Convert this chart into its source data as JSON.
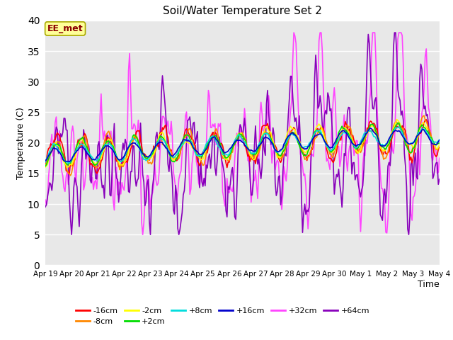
{
  "title": "Soil/Water Temperature Set 2",
  "xlabel": "Time",
  "ylabel": "Temperature (C)",
  "annotation": "EE_met",
  "ylim": [
    0,
    40
  ],
  "yticks": [
    0,
    5,
    10,
    15,
    20,
    25,
    30,
    35,
    40
  ],
  "x_labels": [
    "Apr 19",
    "Apr 20",
    "Apr 21",
    "Apr 22",
    "Apr 23",
    "Apr 24",
    "Apr 25",
    "Apr 26",
    "Apr 27",
    "Apr 28",
    "Apr 29",
    "Apr 30",
    "May 1",
    "May 2",
    "May 3",
    "May 4"
  ],
  "series_order": [
    "-16cm",
    "-8cm",
    "-2cm",
    "+2cm",
    "+8cm",
    "+16cm",
    "+32cm",
    "+64cm"
  ],
  "series": {
    "-16cm": {
      "color": "#ff0000",
      "lw": 1.2
    },
    "-8cm": {
      "color": "#ff8800",
      "lw": 1.2
    },
    "-2cm": {
      "color": "#ffff00",
      "lw": 1.2
    },
    "+2cm": {
      "color": "#00dd00",
      "lw": 1.2
    },
    "+8cm": {
      "color": "#00dddd",
      "lw": 1.2
    },
    "+16cm": {
      "color": "#0000cc",
      "lw": 1.2
    },
    "+32cm": {
      "color": "#ff44ff",
      "lw": 1.2
    },
    "+64cm": {
      "color": "#8800bb",
      "lw": 1.2
    }
  },
  "background_color": "#e8e8e8",
  "legend_row1": [
    "-16cm",
    "-8cm",
    "-2cm",
    "+2cm",
    "+8cm",
    "+16cm"
  ],
  "legend_row2": [
    "+32cm",
    "+64cm"
  ]
}
